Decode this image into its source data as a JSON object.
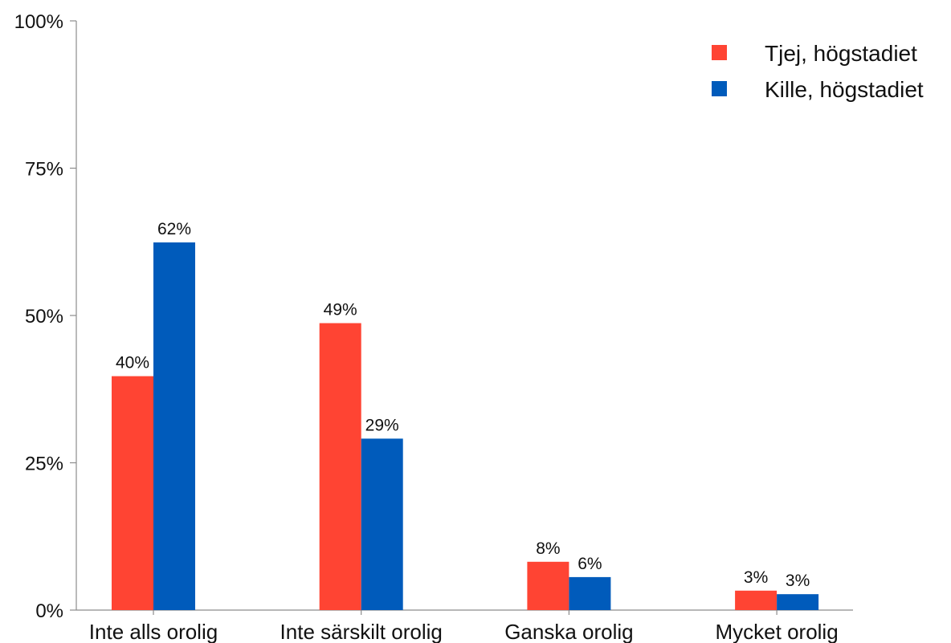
{
  "chart_data": {
    "type": "bar",
    "categories": [
      "Inte alls orolig",
      "Inte särskilt orolig",
      "Ganska orolig",
      "Mycket orolig"
    ],
    "series": [
      {
        "name": "Tjej, högstadiet",
        "values": [
          39.7,
          48.7,
          8.2,
          3.3
        ],
        "labels": [
          "40%",
          "49%",
          "8%",
          "3%"
        ],
        "color": "#ff4433"
      },
      {
        "name": "Kille, högstadiet",
        "values": [
          62.4,
          29.1,
          5.6,
          2.7
        ],
        "labels": [
          "62%",
          "29%",
          "6%",
          "3%"
        ],
        "color": "#005bbb"
      }
    ],
    "ylim": [
      0,
      100
    ],
    "yticks": [
      0,
      25,
      50,
      75,
      100
    ],
    "ytick_labels": [
      "0%",
      "25%",
      "50%",
      "75%",
      "100%"
    ],
    "title": "",
    "xlabel": "",
    "ylabel": "",
    "grid": false,
    "legend_position": "top-right"
  }
}
